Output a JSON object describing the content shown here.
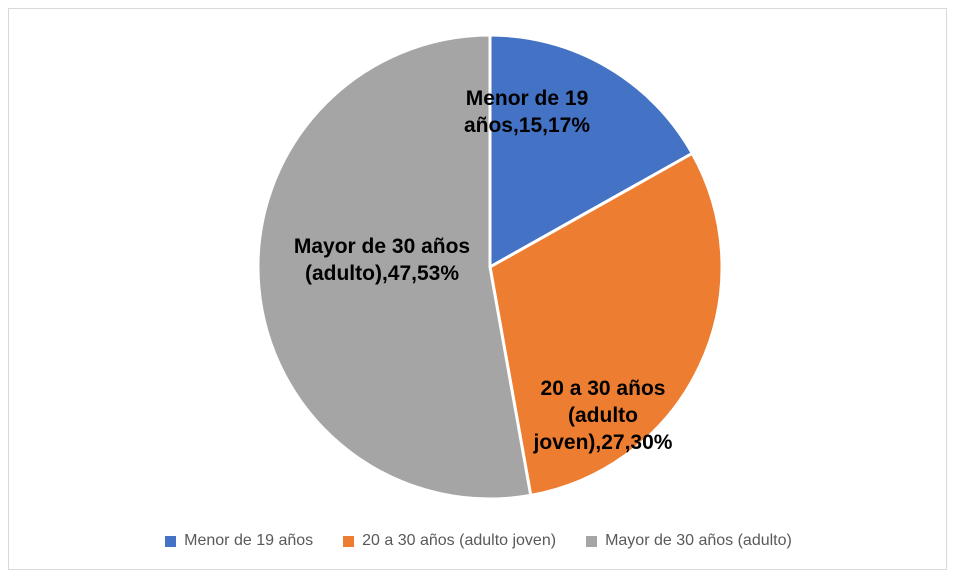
{
  "chart_data": {
    "type": "pie",
    "categories": [
      "Menor de 19 años",
      "20 a 30 años (adulto joven)",
      "Mayor de 30 años (adulto)"
    ],
    "values": [
      15,
      27,
      47
    ],
    "value_labels": [
      "Menor de 19 años,15,17%",
      "20 a 30 años (adulto joven),27,30%",
      "Mayor de 30 años (adulto),47,53%"
    ],
    "colors": [
      "#4472c4",
      "#ed7d31",
      "#a5a5a5"
    ],
    "legend": "bottom"
  }
}
